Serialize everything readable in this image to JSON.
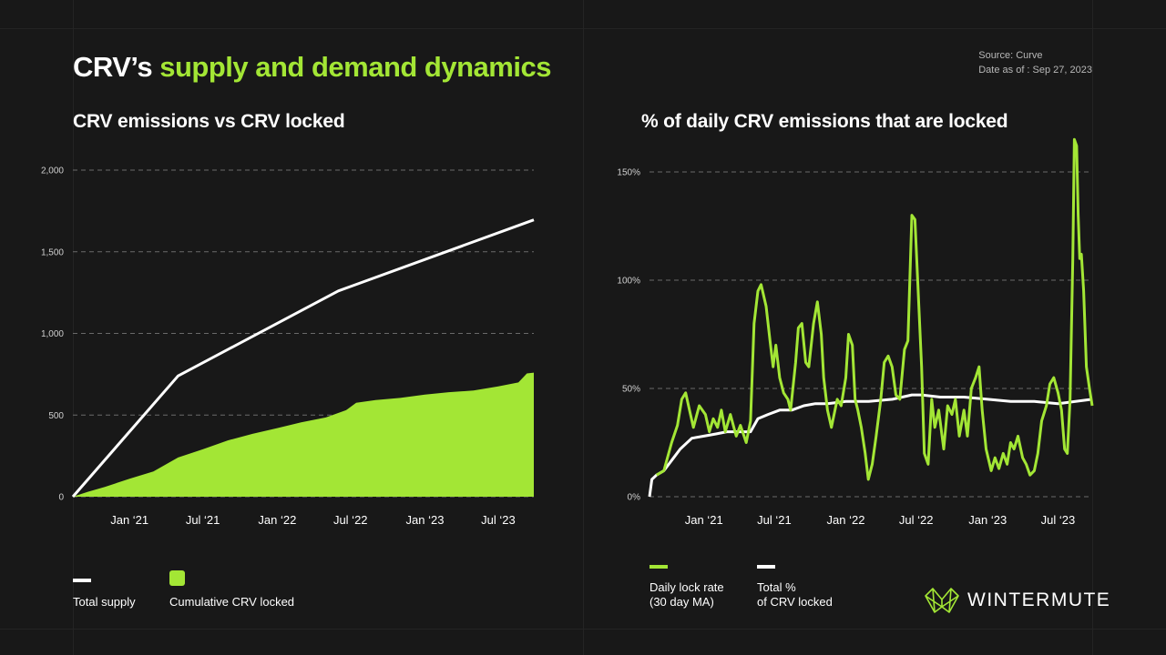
{
  "header": {
    "title_main": "CRV’s ",
    "title_accent": "supply and demand dynamics",
    "source": "Source: Curve",
    "date": "Date as of : Sep 27,  2023"
  },
  "colors": {
    "accent": "#a3e635",
    "white": "#ffffff",
    "grid": "#5a5a5a",
    "background": "#181818"
  },
  "brand": {
    "name": "WINTERMUTE",
    "logo_icon": "wintermute-logo-icon"
  },
  "legend_left": {
    "total_supply": "Total supply",
    "cumulative_locked": "Cumulative CRV locked"
  },
  "legend_right": {
    "daily_lock_line1": "Daily lock rate",
    "daily_lock_line2": "(30 day MA)",
    "total_pct_line1": "Total %",
    "total_pct_line2": "of CRV locked"
  },
  "chart_data": [
    {
      "type": "area",
      "title": "CRV emissions vs CRV locked",
      "x_tick_labels": [
        "Jan ‘21",
        "Jul ‘21",
        "Jan ‘22",
        "Jul ‘22",
        "Jan ‘23",
        "Jul ‘23"
      ],
      "y_tick_labels": [
        "0",
        "500",
        "1,000",
        "1,500",
        "2,000"
      ],
      "ylim": [
        0,
        2000
      ],
      "xlim": [
        "2020-08-14",
        "2023-09-27"
      ],
      "grid": "horizontal dashed",
      "legend_position": "bottom",
      "series": [
        {
          "name": "Total supply",
          "style": "line",
          "color": "#ffffff",
          "points": [
            [
              "2020-08-14",
              0
            ],
            [
              "2021-05-01",
              740
            ],
            [
              "2022-06-01",
              1260
            ],
            [
              "2023-09-27",
              1695
            ]
          ]
        },
        {
          "name": "Cumulative CRV locked",
          "style": "area",
          "color": "#a3e635",
          "points": [
            [
              "2020-08-14",
              0
            ],
            [
              "2020-09-20",
              30
            ],
            [
              "2020-11-01",
              60
            ],
            [
              "2021-01-01",
              110
            ],
            [
              "2021-03-01",
              155
            ],
            [
              "2021-05-01",
              240
            ],
            [
              "2021-07-01",
              290
            ],
            [
              "2021-09-01",
              345
            ],
            [
              "2021-11-01",
              385
            ],
            [
              "2022-01-01",
              420
            ],
            [
              "2022-03-01",
              455
            ],
            [
              "2022-05-01",
              485
            ],
            [
              "2022-06-20",
              530
            ],
            [
              "2022-07-15",
              575
            ],
            [
              "2022-09-01",
              592
            ],
            [
              "2022-11-01",
              605
            ],
            [
              "2023-01-01",
              625
            ],
            [
              "2023-03-01",
              640
            ],
            [
              "2023-05-01",
              650
            ],
            [
              "2023-07-01",
              675
            ],
            [
              "2023-08-20",
              700
            ],
            [
              "2023-09-10",
              755
            ],
            [
              "2023-09-27",
              760
            ]
          ]
        }
      ]
    },
    {
      "type": "line",
      "title": "% of daily CRV emissions that are locked",
      "x_tick_labels": [
        "Jan ‘21",
        "Jul ‘21",
        "Jan ‘22",
        "Jul ‘22",
        "Jan ‘23",
        "Jul ‘23"
      ],
      "y_tick_labels": [
        "0%",
        "50%",
        "100%",
        "150%"
      ],
      "ylim": [
        0,
        150
      ],
      "xlim": [
        "2020-08-14",
        "2023-09-27"
      ],
      "grid": "horizontal dashed",
      "legend_position": "bottom",
      "series": [
        {
          "name": "Daily lock rate (30 day MA)",
          "color": "#a3e635",
          "points": [
            [
              "2020-09-01",
              10
            ],
            [
              "2020-09-20",
              12
            ],
            [
              "2020-10-10",
              25
            ],
            [
              "2020-10-25",
              33
            ],
            [
              "2020-11-05",
              45
            ],
            [
              "2020-11-15",
              48
            ],
            [
              "2020-11-25",
              40
            ],
            [
              "2020-12-05",
              32
            ],
            [
              "2020-12-20",
              42
            ],
            [
              "2021-01-05",
              38
            ],
            [
              "2021-01-15",
              30
            ],
            [
              "2021-01-25",
              36
            ],
            [
              "2021-02-05",
              32
            ],
            [
              "2021-02-15",
              40
            ],
            [
              "2021-02-25",
              30
            ],
            [
              "2021-03-10",
              38
            ],
            [
              "2021-03-25",
              28
            ],
            [
              "2021-04-05",
              33
            ],
            [
              "2021-04-20",
              25
            ],
            [
              "2021-05-01",
              35
            ],
            [
              "2021-05-10",
              80
            ],
            [
              "2021-05-20",
              95
            ],
            [
              "2021-05-28",
              98
            ],
            [
              "2021-06-10",
              88
            ],
            [
              "2021-06-20",
              72
            ],
            [
              "2021-06-28",
              60
            ],
            [
              "2021-07-05",
              70
            ],
            [
              "2021-07-15",
              55
            ],
            [
              "2021-07-25",
              48
            ],
            [
              "2021-08-05",
              45
            ],
            [
              "2021-08-12",
              40
            ],
            [
              "2021-08-25",
              62
            ],
            [
              "2021-09-01",
              78
            ],
            [
              "2021-09-10",
              80
            ],
            [
              "2021-09-20",
              62
            ],
            [
              "2021-09-28",
              60
            ],
            [
              "2021-10-10",
              80
            ],
            [
              "2021-10-20",
              90
            ],
            [
              "2021-10-30",
              75
            ],
            [
              "2021-11-05",
              55
            ],
            [
              "2021-11-15",
              40
            ],
            [
              "2021-11-25",
              32
            ],
            [
              "2021-12-10",
              45
            ],
            [
              "2021-12-20",
              42
            ],
            [
              "2022-01-01",
              55
            ],
            [
              "2022-01-08",
              75
            ],
            [
              "2022-01-18",
              70
            ],
            [
              "2022-01-25",
              45
            ],
            [
              "2022-02-01",
              40
            ],
            [
              "2022-02-10",
              32
            ],
            [
              "2022-02-20",
              20
            ],
            [
              "2022-02-28",
              8
            ],
            [
              "2022-03-10",
              15
            ],
            [
              "2022-03-20",
              28
            ],
            [
              "2022-04-01",
              45
            ],
            [
              "2022-04-10",
              62
            ],
            [
              "2022-04-20",
              65
            ],
            [
              "2022-04-30",
              60
            ],
            [
              "2022-05-10",
              47
            ],
            [
              "2022-05-20",
              45
            ],
            [
              "2022-06-01",
              68
            ],
            [
              "2022-06-10",
              72
            ],
            [
              "2022-06-20",
              130
            ],
            [
              "2022-06-28",
              128
            ],
            [
              "2022-07-05",
              100
            ],
            [
              "2022-07-15",
              60
            ],
            [
              "2022-07-22",
              20
            ],
            [
              "2022-08-01",
              15
            ],
            [
              "2022-08-10",
              45
            ],
            [
              "2022-08-18",
              32
            ],
            [
              "2022-08-28",
              40
            ],
            [
              "2022-09-10",
              22
            ],
            [
              "2022-09-20",
              42
            ],
            [
              "2022-10-01",
              38
            ],
            [
              "2022-10-10",
              45
            ],
            [
              "2022-10-20",
              28
            ],
            [
              "2022-11-01",
              40
            ],
            [
              "2022-11-10",
              28
            ],
            [
              "2022-11-20",
              50
            ],
            [
              "2022-12-01",
              55
            ],
            [
              "2022-12-10",
              60
            ],
            [
              "2022-12-18",
              40
            ],
            [
              "2022-12-28",
              22
            ],
            [
              "2023-01-10",
              12
            ],
            [
              "2023-01-20",
              18
            ],
            [
              "2023-01-30",
              13
            ],
            [
              "2023-02-10",
              20
            ],
            [
              "2023-02-20",
              15
            ],
            [
              "2023-03-01",
              25
            ],
            [
              "2023-03-10",
              22
            ],
            [
              "2023-03-20",
              28
            ],
            [
              "2023-04-01",
              18
            ],
            [
              "2023-04-10",
              15
            ],
            [
              "2023-04-20",
              10
            ],
            [
              "2023-05-01",
              12
            ],
            [
              "2023-05-10",
              20
            ],
            [
              "2023-05-20",
              35
            ],
            [
              "2023-06-01",
              42
            ],
            [
              "2023-06-10",
              52
            ],
            [
              "2023-06-20",
              55
            ],
            [
              "2023-07-01",
              48
            ],
            [
              "2023-07-10",
              40
            ],
            [
              "2023-07-18",
              22
            ],
            [
              "2023-07-25",
              20
            ],
            [
              "2023-08-01",
              45
            ],
            [
              "2023-08-08",
              110
            ],
            [
              "2023-08-12",
              165
            ],
            [
              "2023-08-18",
              162
            ],
            [
              "2023-08-22",
              130
            ],
            [
              "2023-08-26",
              110
            ],
            [
              "2023-08-30",
              112
            ],
            [
              "2023-09-05",
              95
            ],
            [
              "2023-09-12",
              60
            ],
            [
              "2023-09-20",
              50
            ],
            [
              "2023-09-27",
              42
            ]
          ]
        },
        {
          "name": "Total % of CRV locked",
          "color": "#ffffff",
          "points": [
            [
              "2020-08-14",
              0
            ],
            [
              "2020-08-20",
              8
            ],
            [
              "2020-09-01",
              10
            ],
            [
              "2020-09-20",
              12
            ],
            [
              "2020-10-15",
              18
            ],
            [
              "2020-11-01",
              22
            ],
            [
              "2020-12-01",
              27
            ],
            [
              "2021-01-01",
              28
            ],
            [
              "2021-02-01",
              29
            ],
            [
              "2021-03-01",
              30
            ],
            [
              "2021-04-01",
              30
            ],
            [
              "2021-05-01",
              30
            ],
            [
              "2021-05-20",
              36
            ],
            [
              "2021-06-15",
              38
            ],
            [
              "2021-07-15",
              40
            ],
            [
              "2021-08-15",
              40
            ],
            [
              "2021-09-15",
              42
            ],
            [
              "2021-10-15",
              43
            ],
            [
              "2021-11-15",
              43
            ],
            [
              "2022-01-01",
              44
            ],
            [
              "2022-03-01",
              44
            ],
            [
              "2022-05-01",
              45
            ],
            [
              "2022-06-20",
              47
            ],
            [
              "2022-07-15",
              47
            ],
            [
              "2022-09-01",
              46
            ],
            [
              "2022-11-01",
              46
            ],
            [
              "2023-01-01",
              45
            ],
            [
              "2023-03-01",
              44
            ],
            [
              "2023-05-01",
              44
            ],
            [
              "2023-07-01",
              43
            ],
            [
              "2023-08-15",
              44
            ],
            [
              "2023-09-27",
              45
            ]
          ]
        }
      ]
    }
  ]
}
